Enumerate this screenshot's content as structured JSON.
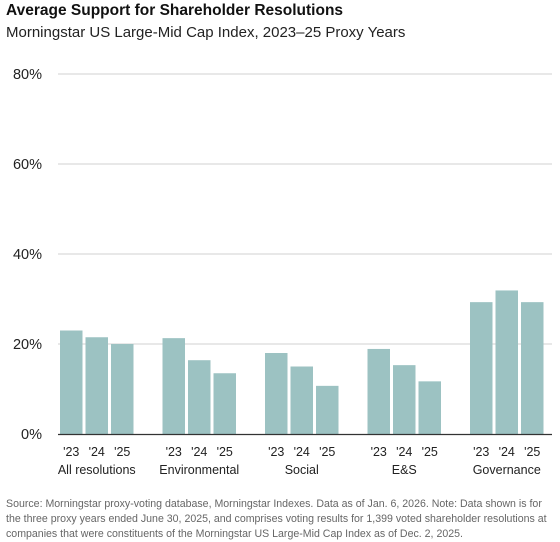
{
  "header": {
    "title": "Average Support for Shareholder Resolutions",
    "subtitle": "Morningstar US Large-Mid Cap Index, 2023–25 Proxy Years"
  },
  "footer": {
    "source": "Source: Morningstar proxy-voting database, Morningstar Indexes. Data as of Jan. 6, 2026. Note: Data shown is for the three proxy years ended June 30, 2025, and comprises voting results for 1,399 voted shareholder resolutions at companies that were constituents of the Morningstar US Large-Mid Cap Index as of Dec. 2, 2025."
  },
  "chart_data": {
    "type": "bar",
    "title": "Average Support for Shareholder Resolutions",
    "subtitle": "Morningstar US Large-Mid Cap Index, 2023–25 Proxy Years",
    "categories": [
      "All resolutions",
      "Environmental",
      "Social",
      "E&S",
      "Governance"
    ],
    "bar_labels": [
      "'23",
      "'24",
      "'25"
    ],
    "values": [
      [
        23.0,
        21.5,
        20.0
      ],
      [
        21.3,
        16.4,
        13.5
      ],
      [
        18.0,
        15.0,
        10.7
      ],
      [
        18.9,
        15.3,
        11.7
      ],
      [
        29.3,
        31.9,
        29.3
      ]
    ],
    "ylim": [
      0,
      80
    ],
    "yticks": [
      0,
      20,
      40,
      60,
      80
    ],
    "ytick_labels": [
      "0%",
      "20%",
      "40%",
      "60%",
      "80%"
    ],
    "xlabel": "",
    "ylabel": "",
    "grid": true,
    "legend": "none",
    "colors": {
      "bar": "#9cc2c2",
      "grid": "#d0d0d0",
      "axis": "#333333"
    }
  }
}
